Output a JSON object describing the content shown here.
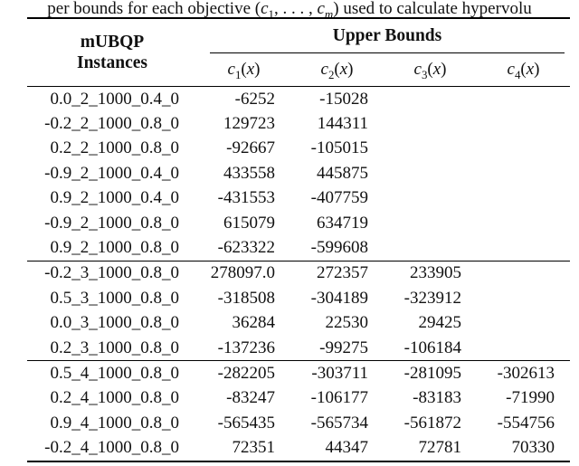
{
  "caption": {
    "prefix": "per bounds for each objective (",
    "var1": "c",
    "sub1": "1",
    "middle": ", . . . , ",
    "var2": "c",
    "sub2": "m",
    "suffix": ") used to calculate hypervolu"
  },
  "table": {
    "header": {
      "col1_line1": "mUBQP",
      "col1_line2": "Instances",
      "group_label": "Upper Bounds",
      "columns": [
        {
          "base": "c",
          "sub": "1",
          "open": "(",
          "arg": "x",
          "close": ")"
        },
        {
          "base": "c",
          "sub": "2",
          "open": "(",
          "arg": "x",
          "close": ")"
        },
        {
          "base": "c",
          "sub": "3",
          "open": "(",
          "arg": "x",
          "close": ")"
        },
        {
          "base": "c",
          "sub": "4",
          "open": "(",
          "arg": "x",
          "close": ")"
        }
      ]
    },
    "groups": [
      {
        "rows": [
          {
            "instance": "0.0_2_1000_0.4_0",
            "values": [
              "-6252",
              "-15028"
            ]
          },
          {
            "instance": "-0.2_2_1000_0.8_0",
            "values": [
              "129723",
              "144311"
            ]
          },
          {
            "instance": "0.2_2_1000_0.8_0",
            "values": [
              "-92667",
              "-105015"
            ]
          },
          {
            "instance": "-0.9_2_1000_0.4_0",
            "values": [
              "433558",
              "445875"
            ]
          },
          {
            "instance": "0.9_2_1000_0.4_0",
            "values": [
              "-431553",
              "-407759"
            ]
          },
          {
            "instance": "-0.9_2_1000_0.8_0",
            "values": [
              "615079",
              "634719"
            ]
          },
          {
            "instance": "0.9_2_1000_0.8_0",
            "values": [
              "-623322",
              "-599608"
            ]
          }
        ]
      },
      {
        "rows": [
          {
            "instance": "-0.2_3_1000_0.8_0",
            "values": [
              "278097.0",
              "272357",
              "233905"
            ]
          },
          {
            "instance": "0.5_3_1000_0.8_0",
            "values": [
              "-318508",
              "-304189",
              "-323912"
            ]
          },
          {
            "instance": "0.0_3_1000_0.8_0",
            "values": [
              "36284",
              "22530",
              "29425"
            ]
          },
          {
            "instance": "0.2_3_1000_0.8_0",
            "values": [
              "-137236",
              "-99275",
              "-106184"
            ]
          }
        ]
      },
      {
        "rows": [
          {
            "instance": "0.5_4_1000_0.8_0",
            "values": [
              "-282205",
              "-303711",
              "-281095",
              "-302613"
            ]
          },
          {
            "instance": "0.2_4_1000_0.8_0",
            "values": [
              "-83247",
              "-106177",
              "-83183",
              "-71990"
            ]
          },
          {
            "instance": "0.9_4_1000_0.8_0",
            "values": [
              "-565435",
              "-565734",
              "-561872",
              "-554756"
            ]
          },
          {
            "instance": "-0.2_4_1000_0.8_0",
            "values": [
              "72351",
              "44347",
              "72781",
              "70330"
            ]
          }
        ]
      }
    ],
    "colors": {
      "rule": "#000000",
      "text": "#111111",
      "background": "#ffffff"
    }
  }
}
